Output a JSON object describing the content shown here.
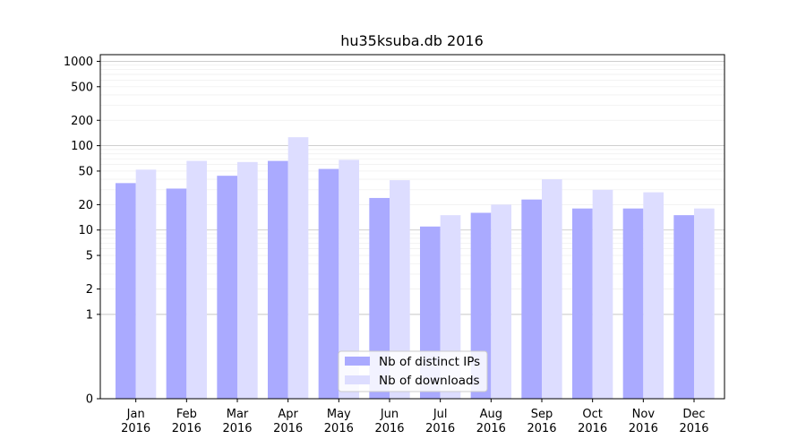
{
  "chart_data": {
    "type": "bar",
    "title": "hu35ksuba.db 2016",
    "xlabel": "",
    "ylabel": "",
    "y_scale": "symlog",
    "ylim": [
      0,
      1200
    ],
    "y_ticks": [
      0,
      1,
      2,
      5,
      10,
      20,
      50,
      100,
      200,
      500,
      1000
    ],
    "grid": true,
    "legend_position": "bottom-center",
    "categories": [
      [
        "Jan",
        "2016"
      ],
      [
        "Feb",
        "2016"
      ],
      [
        "Mar",
        "2016"
      ],
      [
        "Apr",
        "2016"
      ],
      [
        "May",
        "2016"
      ],
      [
        "Jun",
        "2016"
      ],
      [
        "Jul",
        "2016"
      ],
      [
        "Aug",
        "2016"
      ],
      [
        "Sep",
        "2016"
      ],
      [
        "Oct",
        "2016"
      ],
      [
        "Nov",
        "2016"
      ],
      [
        "Dec",
        "2016"
      ]
    ],
    "series": [
      {
        "name": "Nb of distinct IPs",
        "color": "#aaaaff",
        "values": [
          36,
          31,
          44,
          66,
          53,
          24,
          11,
          16,
          23,
          18,
          18,
          15
        ]
      },
      {
        "name": "Nb of downloads",
        "color": "#ddddff",
        "values": [
          52,
          66,
          64,
          126,
          68,
          39,
          15,
          20,
          40,
          30,
          28,
          18
        ]
      }
    ]
  }
}
